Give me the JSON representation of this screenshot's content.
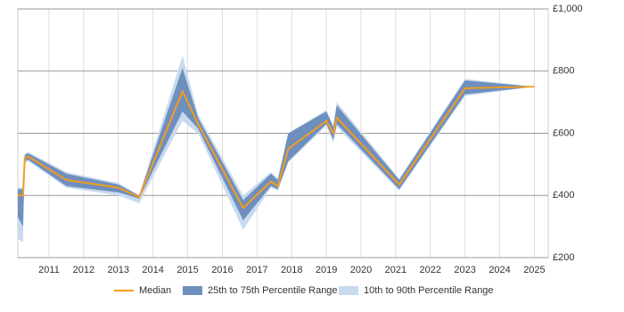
{
  "chart_data": {
    "type": "band-line",
    "x": [
      2010.1,
      2010.25,
      2010.3,
      2010.4,
      2011.5,
      2013,
      2013.6,
      2014.85,
      2015.3,
      2016.6,
      2017.4,
      2017.6,
      2017.9,
      2019,
      2019.2,
      2019.3,
      2021.1,
      2023,
      2025
    ],
    "series": [
      {
        "name": "Median",
        "color": "#f39c1c",
        "values": [
          400,
          400,
          520,
          525,
          450,
          425,
          395,
          735,
          630,
          360,
          445,
          430,
          550,
          640,
          600,
          650,
          435,
          745,
          750
        ]
      },
      {
        "name": "25th to 75th Percentile Range",
        "color": "#6f8fbf",
        "low": [
          330,
          300,
          510,
          515,
          430,
          410,
          390,
          670,
          615,
          320,
          430,
          420,
          510,
          630,
          580,
          630,
          420,
          725,
          750
        ],
        "high": [
          420,
          420,
          530,
          535,
          470,
          435,
          400,
          810,
          650,
          385,
          470,
          450,
          600,
          670,
          620,
          690,
          450,
          770,
          750
        ]
      },
      {
        "name": "10th to 90th Percentile Range",
        "color": "#c8daee",
        "low": [
          260,
          250,
          505,
          510,
          425,
          400,
          375,
          640,
          600,
          290,
          425,
          415,
          505,
          625,
          570,
          620,
          415,
          720,
          750
        ],
        "high": [
          425,
          425,
          535,
          540,
          475,
          440,
          400,
          850,
          660,
          400,
          475,
          455,
          600,
          675,
          625,
          700,
          455,
          775,
          750
        ]
      }
    ],
    "xlim": [
      2010.1,
      2025.4
    ],
    "xticks": [
      2011,
      2012,
      2013,
      2014,
      2015,
      2016,
      2017,
      2018,
      2019,
      2020,
      2021,
      2022,
      2023,
      2024,
      2025
    ],
    "ylim": [
      200,
      1000
    ],
    "yticks": [
      {
        "value": 200,
        "label": "£200"
      },
      {
        "value": 400,
        "label": "£400"
      },
      {
        "value": 600,
        "label": "£600"
      },
      {
        "value": 800,
        "label": "£800"
      },
      {
        "value": 1000,
        "label": "£1,000"
      }
    ],
    "grid": true
  }
}
